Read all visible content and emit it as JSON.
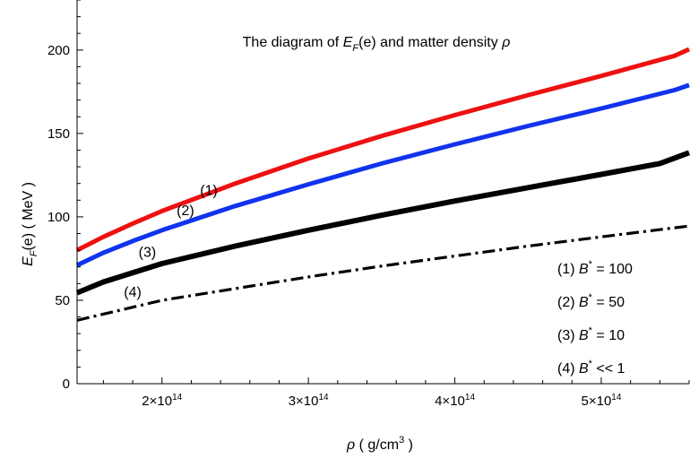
{
  "chart_data": {
    "type": "line",
    "title": "The diagram of E_F(e) and  matter density ρ",
    "title_parts": {
      "prefix": "The diagram of ",
      "symbol": "E",
      "subscript": "F",
      "middle": "(e) and  matter density ",
      "rho": "ρ"
    },
    "xlabel": "ρ  ( g/cm³ )",
    "xlabel_parts": {
      "symbol": "ρ",
      "unit_prefix": "  ( g/cm",
      "unit_exp": "3",
      "unit_suffix": " )"
    },
    "ylabel": "E_F(e)  ( MeV )",
    "ylabel_parts": {
      "symbol": "E",
      "subscript": "F",
      "rest": "(e)  ( MeV )"
    },
    "xlim": [
      142000000000000.0,
      560000000000000.0
    ],
    "ylim": [
      0,
      230
    ],
    "x_ticks": [
      {
        "value": 200000000000000.0,
        "mantissa": "2",
        "base": "×10",
        "exp": "14"
      },
      {
        "value": 300000000000000.0,
        "mantissa": "3",
        "base": "×10",
        "exp": "14"
      },
      {
        "value": 400000000000000.0,
        "mantissa": "4",
        "base": "×10",
        "exp": "14"
      },
      {
        "value": 500000000000000.0,
        "mantissa": "5",
        "base": "×10",
        "exp": "14"
      }
    ],
    "y_ticks": [
      0,
      50,
      100,
      150,
      200
    ],
    "series": [
      {
        "id": "s1",
        "color": "#ee1111",
        "dash": "",
        "width": 5,
        "label": "(1)",
        "label_at": {
          "x": 232000000000000.0,
          "y": 113
        },
        "x": [
          142000000000000.0,
          160000000000000.0,
          180000000000000.0,
          200000000000000.0,
          250000000000000.0,
          300000000000000.0,
          350000000000000.0,
          400000000000000.0,
          450000000000000.0,
          500000000000000.0,
          550000000000000.0,
          560000000000000.0
        ],
        "y": [
          80,
          88,
          96,
          103.5,
          120,
          135,
          148.5,
          161,
          173,
          184.5,
          196.5,
          200.5
        ]
      },
      {
        "id": "s2",
        "color": "#1133ee",
        "dash": "",
        "width": 5,
        "label": "(2)",
        "label_at": {
          "x": 216000000000000.0,
          "y": 101
        },
        "x": [
          142000000000000.0,
          160000000000000.0,
          180000000000000.0,
          200000000000000.0,
          250000000000000.0,
          300000000000000.0,
          350000000000000.0,
          400000000000000.0,
          450000000000000.0,
          500000000000000.0,
          550000000000000.0,
          560000000000000.0
        ],
        "y": [
          71,
          78.5,
          85.5,
          92,
          106.5,
          119.5,
          132,
          143.5,
          154.5,
          165,
          176,
          179
        ]
      },
      {
        "id": "s3",
        "color": "#000000",
        "dash": "",
        "width": 6,
        "label": "(3)",
        "label_at": {
          "x": 190000000000000.0,
          "y": 76
        },
        "x": [
          142000000000000.0,
          160000000000000.0,
          180000000000000.0,
          200000000000000.0,
          250000000000000.0,
          300000000000000.0,
          350000000000000.0,
          400000000000000.0,
          450000000000000.0,
          500000000000000.0,
          540000000000000.0,
          560000000000000.0
        ],
        "y": [
          54.5,
          61,
          66.5,
          72,
          82.5,
          92,
          101,
          109.5,
          117.5,
          125.5,
          132,
          138.5
        ]
      },
      {
        "id": "s4",
        "color": "#000000",
        "dash": "14,5,3,5",
        "width": 3.2,
        "label": "(4)",
        "label_at": {
          "x": 180000000000000.0,
          "y": 52
        },
        "x": [
          142000000000000.0,
          200000000000000.0,
          250000000000000.0,
          300000000000000.0,
          350000000000000.0,
          400000000000000.0,
          450000000000000.0,
          500000000000000.0,
          560000000000000.0
        ],
        "y": [
          38,
          50,
          57,
          64,
          70.5,
          76.5,
          82.5,
          88,
          94.5
        ]
      }
    ],
    "legend": [
      {
        "num": "(1) ",
        "sym": "B",
        "sup": "*",
        "rest": " = 100"
      },
      {
        "num": "(2) ",
        "sym": "B",
        "sup": "*",
        "rest": " = 50"
      },
      {
        "num": "(3) ",
        "sym": "B",
        "sup": "*",
        "rest": " = 10"
      },
      {
        "num": "(4) ",
        "sym": "B",
        "sup": "*",
        "rest": " << 1"
      }
    ],
    "legend_position": "bottom-right",
    "grid": false
  }
}
